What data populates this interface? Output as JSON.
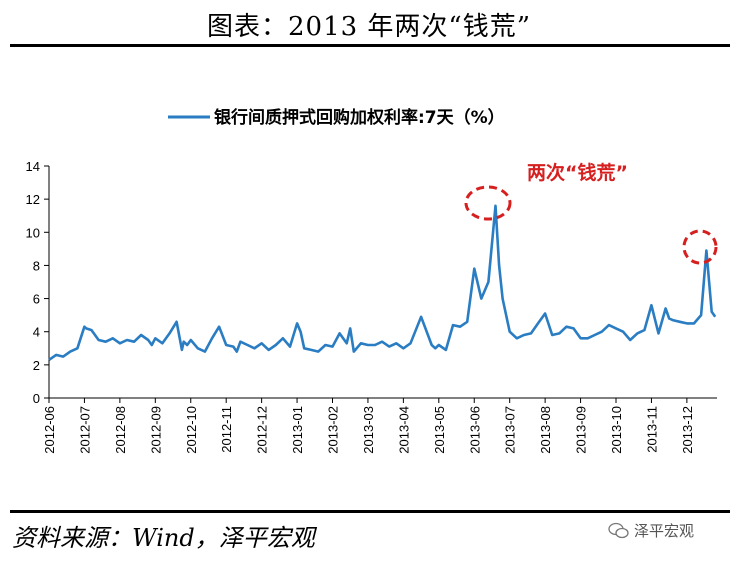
{
  "header": {
    "title": "图表：2013 年两次“钱荒”"
  },
  "footer": {
    "source": "资料来源：Wind，泽平宏观",
    "watermark": "泽平宏观"
  },
  "colors": {
    "series": "#2a7dc2",
    "annotation": "#d62020",
    "axis": "#000000"
  },
  "chart_data": {
    "type": "line",
    "title": "",
    "legend": [
      "银行间质押式回购加权利率:7天（%）"
    ],
    "legend_position": "top-center",
    "annotation": "两次“钱荒”",
    "ylim": [
      0,
      14
    ],
    "yticks": [
      0,
      2,
      4,
      6,
      8,
      10,
      12,
      14
    ],
    "xticks": [
      "2012-06",
      "2012-07",
      "2012-08",
      "2012-09",
      "2012-10",
      "2012-11",
      "2012-12",
      "2013-01",
      "2013-02",
      "2013-03",
      "2013-04",
      "2013-05",
      "2013-06",
      "2013-07",
      "2013-08",
      "2013-09",
      "2013-10",
      "2013-11",
      "2013-12"
    ],
    "grid": false,
    "series": [
      {
        "name": "银行间质押式回购加权利率:7天（%）",
        "x": [
          0,
          0.2,
          0.4,
          0.6,
          0.8,
          1.0,
          1.05,
          1.2,
          1.4,
          1.6,
          1.8,
          2.0,
          2.2,
          2.4,
          2.6,
          2.8,
          2.9,
          3.0,
          3.2,
          3.4,
          3.6,
          3.75,
          3.8,
          3.9,
          4.0,
          4.2,
          4.4,
          4.6,
          4.8,
          5.0,
          5.2,
          5.3,
          5.4,
          5.6,
          5.8,
          6.0,
          6.2,
          6.4,
          6.6,
          6.8,
          7.0,
          7.1,
          7.2,
          7.4,
          7.6,
          7.8,
          8.0,
          8.2,
          8.4,
          8.5,
          8.6,
          8.8,
          9.0,
          9.2,
          9.4,
          9.6,
          9.8,
          10.0,
          10.2,
          10.5,
          10.8,
          10.9,
          11.0,
          11.2,
          11.4,
          11.6,
          11.8,
          12.0,
          12.2,
          12.4,
          12.6,
          12.7,
          12.8,
          13.0,
          13.2,
          13.4,
          13.6,
          13.8,
          14.0,
          14.2,
          14.4,
          14.6,
          14.8,
          15.0,
          15.2,
          15.4,
          15.6,
          15.8,
          16.0,
          16.2,
          16.4,
          16.6,
          16.8,
          17.0,
          17.2,
          17.4,
          17.5,
          17.6,
          17.8,
          18.0,
          18.2,
          18.4,
          18.55,
          18.7,
          18.8
        ],
        "values": [
          2.3,
          2.6,
          2.5,
          2.8,
          3.0,
          4.3,
          4.2,
          4.1,
          3.5,
          3.4,
          3.6,
          3.3,
          3.5,
          3.4,
          3.8,
          3.5,
          3.2,
          3.6,
          3.3,
          3.9,
          4.6,
          2.9,
          3.4,
          3.2,
          3.5,
          3.0,
          2.8,
          3.6,
          4.3,
          3.2,
          3.1,
          2.8,
          3.4,
          3.2,
          3.0,
          3.3,
          2.9,
          3.2,
          3.6,
          3.1,
          4.5,
          4.0,
          3.0,
          2.9,
          2.8,
          3.2,
          3.1,
          3.9,
          3.3,
          4.2,
          2.8,
          3.3,
          3.2,
          3.2,
          3.4,
          3.1,
          3.3,
          3.0,
          3.3,
          4.9,
          3.2,
          3.0,
          3.2,
          2.9,
          4.4,
          4.3,
          4.6,
          7.8,
          6.0,
          7.0,
          11.6,
          8.0,
          6.0,
          4.0,
          3.6,
          3.8,
          3.9,
          4.5,
          5.1,
          3.8,
          3.9,
          4.3,
          4.2,
          3.6,
          3.6,
          3.8,
          4.0,
          4.4,
          4.2,
          4.0,
          3.5,
          3.9,
          4.1,
          5.6,
          3.9,
          5.4,
          4.8,
          4.7,
          4.6,
          4.5,
          4.5,
          5.0,
          8.9,
          5.2,
          4.9
        ]
      }
    ]
  }
}
